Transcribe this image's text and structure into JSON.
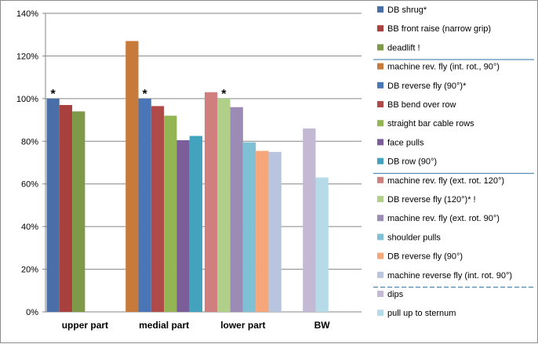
{
  "chart_data": {
    "type": "bar",
    "title": "",
    "xlabel": "",
    "ylabel": "",
    "ylim": [
      0,
      140
    ],
    "y_ticks": [
      0,
      20,
      40,
      60,
      80,
      100,
      120,
      140
    ],
    "y_tick_suffix": "%",
    "grid": "horizontal",
    "legend_position": "right",
    "categories": [
      "upper part",
      "medial part",
      "lower part",
      "BW"
    ],
    "series": [
      {
        "name": "DB shrug*",
        "color": "#4a6fa8",
        "values": [
          100,
          null,
          null,
          null
        ],
        "marker": "*"
      },
      {
        "name": "BB front raise (narrow grip)",
        "color": "#a8403e",
        "values": [
          97,
          null,
          null,
          null
        ]
      },
      {
        "name": "deadlift !",
        "color": "#7e9a48",
        "values": [
          94,
          null,
          null,
          null
        ]
      },
      {
        "name": "machine rev. fly (int. rot., 90°)",
        "color": "#c87a3a",
        "values": [
          null,
          127,
          null,
          null
        ]
      },
      {
        "name": "DB reverse fly (90°)*",
        "color": "#4a76b8",
        "values": [
          null,
          100,
          null,
          null
        ],
        "marker": "*"
      },
      {
        "name": "BB bend over row",
        "color": "#b04a48",
        "values": [
          null,
          96.5,
          null,
          null
        ]
      },
      {
        "name": "straight bar cable rows",
        "color": "#93b553",
        "values": [
          null,
          92,
          null,
          null
        ]
      },
      {
        "name": "face pulls",
        "color": "#7a5d99",
        "values": [
          null,
          80.5,
          null,
          null
        ]
      },
      {
        "name": "DB row (90°)",
        "color": "#43a2bd",
        "values": [
          null,
          82.5,
          null,
          null
        ]
      },
      {
        "name": "machine rev. fly (ext. rot. 120°)",
        "color": "#d07e7e",
        "values": [
          null,
          null,
          103,
          null
        ]
      },
      {
        "name": "DB reverse fly (120°)* !",
        "color": "#b0cf88",
        "values": [
          null,
          null,
          100,
          null
        ],
        "marker": "*"
      },
      {
        "name": "machine rev. fly (ext. rot. 90°)",
        "color": "#9c8bb5",
        "values": [
          null,
          null,
          96,
          null
        ]
      },
      {
        "name": "shoulder pulls",
        "color": "#7fc0d5",
        "values": [
          null,
          null,
          79.5,
          null
        ]
      },
      {
        "name": "DB reverse fly (90°)",
        "color": "#f6a679",
        "values": [
          null,
          null,
          75.5,
          null
        ]
      },
      {
        "name": "machine reverse fly (int. rot. 90°)",
        "color": "#b9c5de",
        "values": [
          null,
          null,
          75,
          null
        ]
      },
      {
        "name": "dips",
        "color": "#c4b9d4",
        "values": [
          null,
          null,
          null,
          86
        ]
      },
      {
        "name": "pull up to sternum",
        "color": "#b5dbe8",
        "values": [
          null,
          null,
          null,
          63
        ]
      }
    ],
    "legend_separators": [
      {
        "after": 2,
        "style": "solid"
      },
      {
        "after": 8,
        "style": "solid"
      },
      {
        "after": 14,
        "style": "dashed"
      }
    ]
  }
}
